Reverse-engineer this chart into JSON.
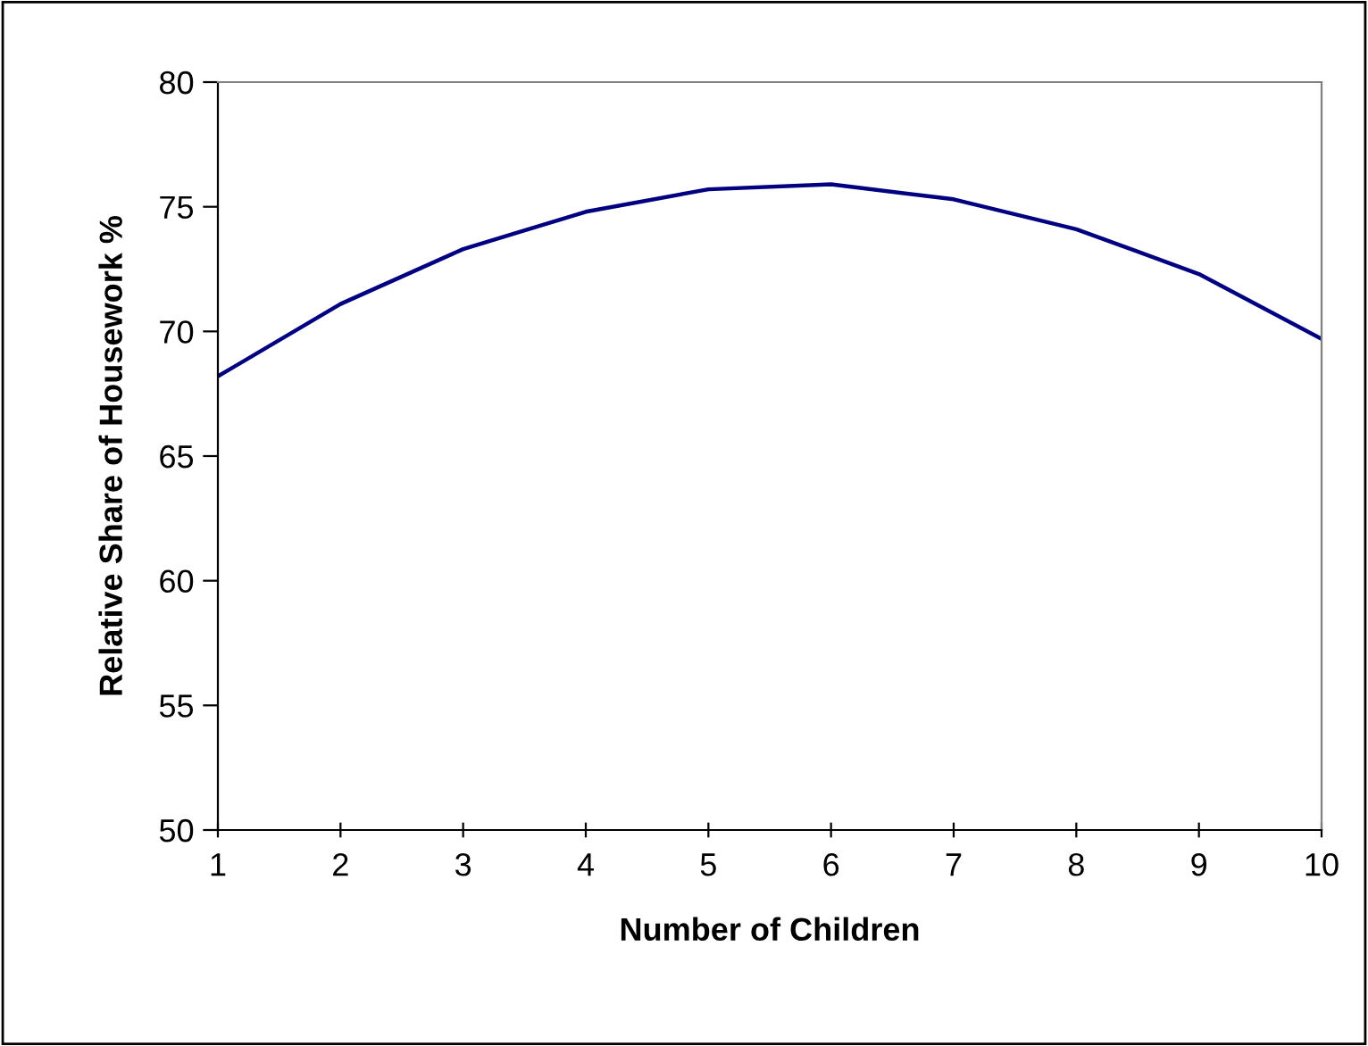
{
  "chart_data": {
    "type": "line",
    "xlabel": "Number of Children",
    "ylabel": "Relative Share of Housework %",
    "x": [
      1,
      2,
      3,
      4,
      5,
      6,
      7,
      8,
      9,
      10
    ],
    "series": [
      {
        "color": "#000080",
        "values": [
          68.2,
          71.1,
          73.3,
          74.8,
          75.7,
          75.9,
          75.3,
          74.1,
          72.3,
          69.7
        ]
      }
    ],
    "xlim": [
      1,
      10
    ],
    "xticks": [
      1,
      2,
      3,
      4,
      5,
      6,
      7,
      8,
      9,
      10
    ],
    "ylim": [
      50,
      80
    ],
    "yticks": [
      50,
      55,
      60,
      65,
      70,
      75,
      80
    ],
    "grid": false,
    "marker": "none",
    "line_style": "solid"
  }
}
